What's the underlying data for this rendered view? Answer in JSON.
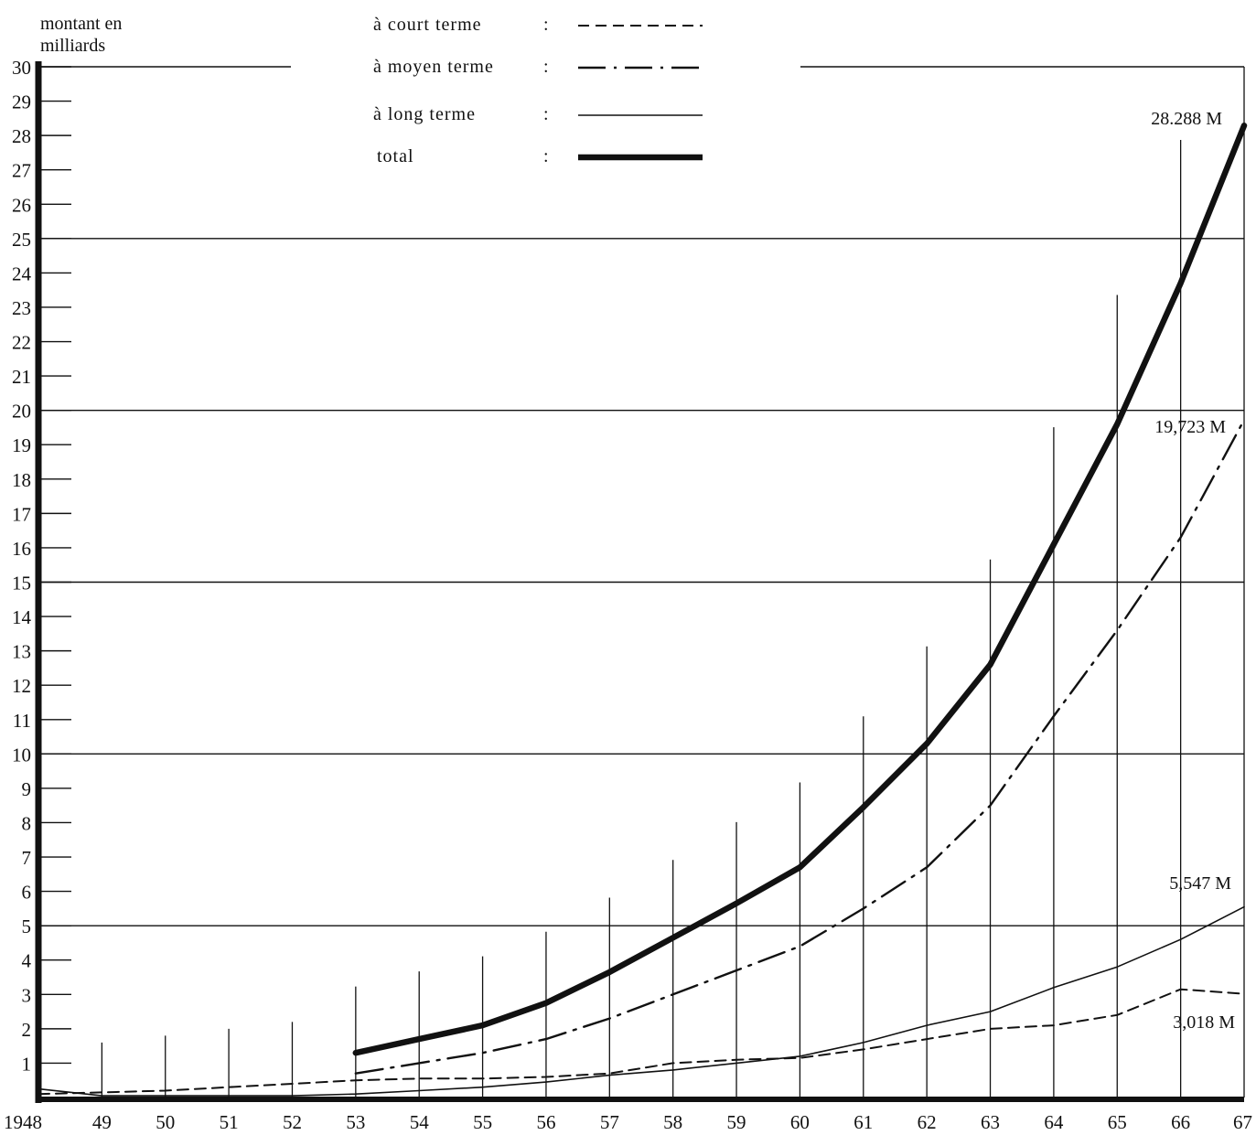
{
  "chart_data": {
    "type": "line",
    "ylabel": "montant en milliards",
    "xlabel": "",
    "ylim": [
      0,
      30
    ],
    "xlim": [
      1948,
      1967
    ],
    "grid": "horizontal every 5, vertical ticks per year",
    "x_tick_labels": [
      "1948",
      "49",
      "50",
      "51",
      "52",
      "53",
      "54",
      "55",
      "56",
      "57",
      "58",
      "59",
      "60",
      "61",
      "62",
      "63",
      "64",
      "65",
      "66",
      "67"
    ],
    "y_tick_labels": [
      "1",
      "2",
      "3",
      "4",
      "5",
      "6",
      "7",
      "8",
      "9",
      "10",
      "11",
      "12",
      "13",
      "14",
      "15",
      "16",
      "17",
      "18",
      "19",
      "20",
      "21",
      "22",
      "23",
      "24",
      "25",
      "26",
      "27",
      "28",
      "29",
      "30"
    ],
    "legend_position": "top-center",
    "series": [
      {
        "key": "court",
        "name": "à court terme",
        "legend_sep": ":",
        "style": "dashed",
        "x": [
          1948,
          1949,
          1950,
          1951,
          1952,
          1953,
          1954,
          1955,
          1956,
          1957,
          1958,
          1959,
          1960,
          1961,
          1962,
          1963,
          1964,
          1965,
          1966,
          1967
        ],
        "values": [
          0.1,
          0.15,
          0.2,
          0.3,
          0.4,
          0.5,
          0.55,
          0.55,
          0.6,
          0.7,
          1.0,
          1.1,
          1.15,
          1.4,
          1.7,
          2.0,
          2.1,
          2.4,
          3.15,
          3.018
        ],
        "end_label": "3,018 M"
      },
      {
        "key": "moyen",
        "name": "à moyen terme",
        "legend_sep": ":",
        "style": "dash-dot",
        "x": [
          1953,
          1954,
          1955,
          1956,
          1957,
          1958,
          1959,
          1960,
          1961,
          1962,
          1963,
          1964,
          1965,
          1966,
          1967
        ],
        "values": [
          0.7,
          1.0,
          1.3,
          1.7,
          2.3,
          3.0,
          3.7,
          4.4,
          5.5,
          6.7,
          8.5,
          11.1,
          13.6,
          16.3,
          19.723
        ],
        "end_label": "19,723 M"
      },
      {
        "key": "long",
        "name": "à long terme",
        "legend_sep": ":",
        "style": "solid",
        "x": [
          1948,
          1949,
          1950,
          1951,
          1952,
          1953,
          1954,
          1955,
          1956,
          1957,
          1958,
          1959,
          1960,
          1961,
          1962,
          1963,
          1964,
          1965,
          1966,
          1967
        ],
        "values": [
          0.25,
          0.05,
          0.05,
          0.05,
          0.05,
          0.1,
          0.2,
          0.3,
          0.45,
          0.65,
          0.8,
          1.0,
          1.2,
          1.6,
          2.1,
          2.5,
          3.2,
          3.8,
          4.6,
          5.547
        ],
        "end_label": "5,547 M"
      },
      {
        "key": "total",
        "name": "total",
        "legend_sep": ":",
        "style": "bold",
        "x": [
          1953,
          1954,
          1955,
          1956,
          1957,
          1958,
          1959,
          1960,
          1961,
          1962,
          1963,
          1964,
          1965,
          1966,
          1967
        ],
        "values": [
          1.3,
          1.7,
          2.1,
          2.75,
          3.65,
          4.65,
          5.65,
          6.7,
          8.45,
          10.3,
          12.6,
          16.1,
          19.6,
          23.7,
          28.288
        ],
        "end_label": "28.288 M"
      }
    ]
  },
  "colors": {
    "ink": "#111111",
    "background": "#ffffff"
  }
}
